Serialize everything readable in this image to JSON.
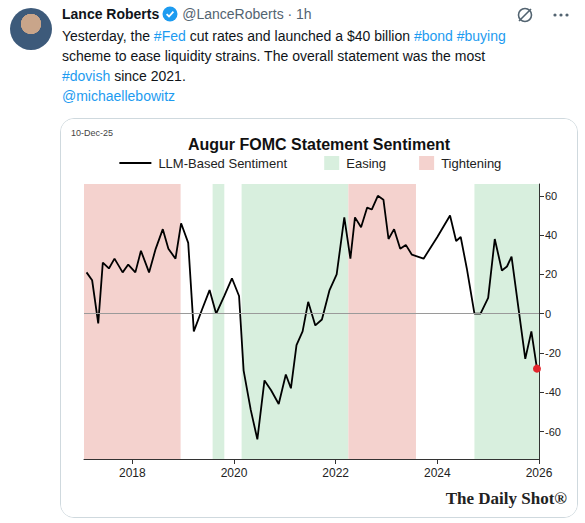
{
  "tweet": {
    "author": "Lance Roberts",
    "handle_line": "@LanceRoberts · 1h",
    "text_lines": [
      "Yesterday, the #Fed cut rates and launched a $40 billion #bond #buying",
      "scheme to ease liquidity strains. The overall statement was the most",
      "#dovish since 2021."
    ],
    "mention": "@michaellebowitz"
  },
  "chart_data": {
    "type": "line",
    "date": "10-Dec-25",
    "title": "Augur FOMC Statement Sentiment",
    "source": "The Daily Shot®",
    "x": [
      2017.1,
      2017.21,
      2017.33,
      2017.42,
      2017.54,
      2017.65,
      2017.81,
      2017.92,
      2018.06,
      2018.17,
      2018.33,
      2018.46,
      2018.6,
      2018.71,
      2018.85,
      2018.96,
      2019.1,
      2019.21,
      2019.37,
      2019.52,
      2019.65,
      2019.81,
      2019.96,
      2020.1,
      2020.19,
      2020.33,
      2020.46,
      2020.6,
      2020.73,
      2020.88,
      2021.02,
      2021.12,
      2021.23,
      2021.35,
      2021.46,
      2021.6,
      2021.73,
      2021.88,
      2022.02,
      2022.17,
      2022.29,
      2022.38,
      2022.5,
      2022.62,
      2022.71,
      2022.83,
      2022.94,
      2023.04,
      2023.15,
      2023.27,
      2023.38,
      2023.5,
      2023.73,
      2024.0,
      2024.25,
      2024.37,
      2024.46,
      2024.58,
      2024.73,
      2024.85,
      2025.0,
      2025.13,
      2025.27,
      2025.37,
      2025.46,
      2025.6,
      2025.73,
      2025.85,
      2025.96
    ],
    "series": [
      {
        "name": "LLM-Based Sentiment",
        "color": "#000000",
        "values": [
          21,
          17,
          -5,
          26,
          23,
          28,
          21,
          25,
          21,
          32,
          21,
          33,
          43,
          33,
          28,
          46,
          36,
          -9,
          2,
          12,
          0,
          9,
          18,
          9,
          -29,
          -49,
          -64,
          -34,
          -39,
          -46,
          -31,
          -38,
          -16,
          -9,
          6,
          -6,
          -3,
          12,
          20,
          49,
          28,
          49,
          44,
          54,
          53,
          60,
          58,
          38,
          43,
          33,
          35,
          30,
          28,
          39,
          50,
          37,
          39,
          23,
          0,
          0,
          8,
          38,
          22,
          24,
          29,
          2,
          -23,
          -9,
          -28
        ]
      }
    ],
    "shading": [
      {
        "name": "Easing",
        "color": "#d8efde",
        "ranges": [
          [
            2019.58,
            2019.81
          ],
          [
            2020.15,
            2022.25
          ],
          [
            2024.73,
            2026
          ]
        ]
      },
      {
        "name": "Tightening",
        "color": "#f4d2ce",
        "ranges": [
          [
            2017.05,
            2018.95
          ],
          [
            2022.25,
            2023.58
          ]
        ]
      }
    ],
    "xlim": [
      2017.05,
      2026
    ],
    "xticks": [
      2018,
      2020,
      2022,
      2024,
      2026
    ],
    "ylim": [
      -74,
      66
    ],
    "yticks": [
      -60,
      -40,
      -20,
      0,
      20,
      40,
      60
    ],
    "legend": "top",
    "grid": false
  }
}
